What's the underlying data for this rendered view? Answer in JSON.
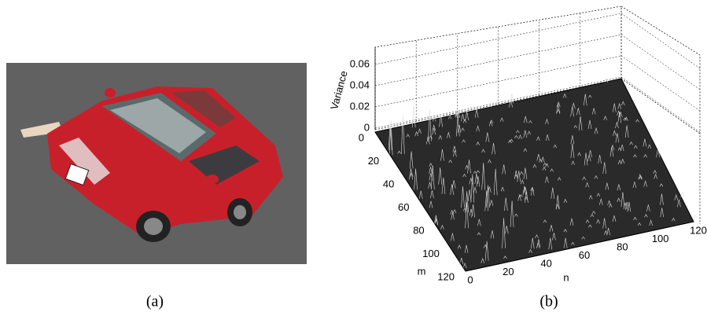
{
  "figure": {
    "panel_a": {
      "caption": "(a)"
    },
    "panel_b": {
      "caption": "(b)",
      "z_label": "Variance",
      "m_label": "m",
      "n_label": "n",
      "z_ticks": [
        0,
        0.02,
        0.04,
        0.06
      ],
      "m_ticks": [
        0,
        20,
        40,
        60,
        80,
        100,
        120
      ],
      "n_ticks": [
        0,
        20,
        40,
        60,
        80,
        100,
        120
      ]
    }
  }
}
